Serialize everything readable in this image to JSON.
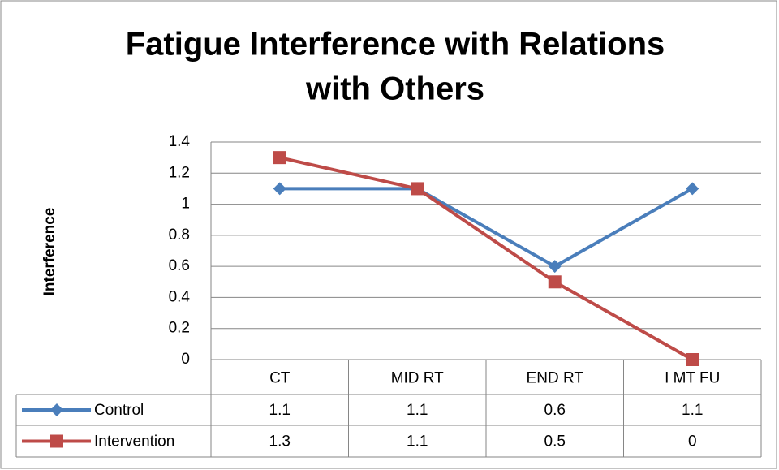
{
  "chart_data": {
    "type": "line",
    "title": [
      "Fatigue Interference with Relations",
      "with Others"
    ],
    "y_label": "Interference",
    "categories": [
      "CT",
      "MID RT",
      "END RT",
      "I MT FU"
    ],
    "series": [
      {
        "name": "Control",
        "color": "#4a7ebb",
        "marker": "diamond",
        "values": [
          1.1,
          1.1,
          0.6,
          1.1
        ]
      },
      {
        "name": "Intervention",
        "color": "#be4b48",
        "marker": "square",
        "values": [
          1.3,
          1.1,
          0.5,
          0
        ]
      }
    ],
    "ylim": [
      0,
      1.4
    ],
    "yticks": [
      0,
      0.2,
      0.4,
      0.6,
      0.8,
      1,
      1.2,
      1.4
    ],
    "grid": true,
    "data_table": true
  }
}
